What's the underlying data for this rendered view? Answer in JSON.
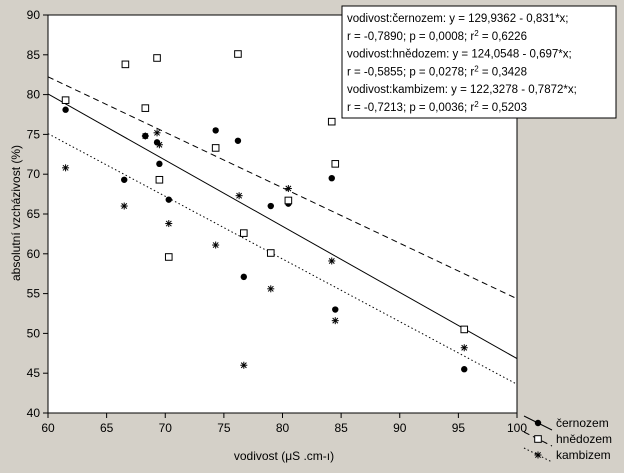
{
  "chart_data": {
    "type": "scatter",
    "title": "",
    "xlabel": "vodivost (μS .cm-ı)",
    "ylabel": "absolutní vzcházivost (%)",
    "xlim": [
      60,
      100
    ],
    "ylim": [
      40,
      90
    ],
    "grid": false,
    "x_ticks": [
      60,
      65,
      70,
      75,
      80,
      85,
      90,
      95,
      100
    ],
    "y_ticks": [
      40,
      45,
      50,
      55,
      60,
      65,
      70,
      75,
      80,
      85,
      90
    ],
    "legend_position": "bottom-right",
    "series": [
      {
        "name": "černozem",
        "marker": "filled-circle",
        "line_style": "solid",
        "fit": {
          "intercept": 129.9362,
          "slope": -0.831
        },
        "points": [
          [
            61.5,
            78.1
          ],
          [
            66.5,
            69.3
          ],
          [
            68.3,
            74.8
          ],
          [
            69.3,
            74.0
          ],
          [
            69.5,
            71.3
          ],
          [
            70.3,
            66.8
          ],
          [
            74.3,
            75.5
          ],
          [
            76.2,
            74.2
          ],
          [
            76.7,
            57.1
          ],
          [
            79.0,
            66.0
          ],
          [
            80.5,
            66.3
          ],
          [
            84.2,
            69.5
          ],
          [
            84.5,
            53.0
          ],
          [
            95.5,
            45.5
          ]
        ]
      },
      {
        "name": "hnědozem",
        "marker": "open-square",
        "line_style": "dashed",
        "fit": {
          "intercept": 124.0548,
          "slope": -0.697
        },
        "points": [
          [
            61.5,
            79.3
          ],
          [
            66.6,
            83.8
          ],
          [
            68.3,
            78.3
          ],
          [
            69.3,
            84.6
          ],
          [
            69.5,
            69.3
          ],
          [
            70.3,
            59.6
          ],
          [
            74.3,
            73.3
          ],
          [
            76.2,
            85.1
          ],
          [
            76.7,
            62.6
          ],
          [
            79.0,
            60.1
          ],
          [
            80.5,
            66.7
          ],
          [
            84.2,
            76.6
          ],
          [
            84.5,
            71.3
          ],
          [
            95.5,
            50.5
          ]
        ]
      },
      {
        "name": "kambizem",
        "marker": "asterisk",
        "line_style": "dotted",
        "fit": {
          "intercept": 122.3278,
          "slope": -0.7872
        },
        "points": [
          [
            61.5,
            70.8
          ],
          [
            66.5,
            66.0
          ],
          [
            68.3,
            74.8
          ],
          [
            69.3,
            75.2
          ],
          [
            69.5,
            73.7
          ],
          [
            70.3,
            63.8
          ],
          [
            74.3,
            61.1
          ],
          [
            76.3,
            67.3
          ],
          [
            76.7,
            46.0
          ],
          [
            79.0,
            55.6
          ],
          [
            80.5,
            68.2
          ],
          [
            84.2,
            59.1
          ],
          [
            84.5,
            51.6
          ],
          [
            95.5,
            48.2
          ]
        ]
      }
    ],
    "stats_box": [
      {
        "parts": [
          {
            "t": "vodivost:černozem:    y = 129,9362 - 0,831*x;"
          }
        ]
      },
      {
        "parts": [
          {
            "t": "r = -0,7890; p = 0,0008; r"
          },
          {
            "t": "2",
            "sup": true
          },
          {
            "t": " = 0,6226"
          }
        ]
      },
      {
        "parts": [
          {
            "t": "vodivost:hnědozem:    y = 124,0548 - 0,697*x;"
          }
        ]
      },
      {
        "parts": [
          {
            "t": "r = -0,5855; p = 0,0278; r"
          },
          {
            "t": "2",
            "sup": true
          },
          {
            "t": " = 0,3428"
          }
        ]
      },
      {
        "parts": [
          {
            "t": "vodivost:kambizem:    y = 122,3278 - 0,7872*x;"
          }
        ]
      },
      {
        "parts": [
          {
            "t": "r = -0,7213; p = 0,0036; r"
          },
          {
            "t": "2",
            "sup": true
          },
          {
            "t": " = 0,5203"
          }
        ]
      }
    ]
  }
}
